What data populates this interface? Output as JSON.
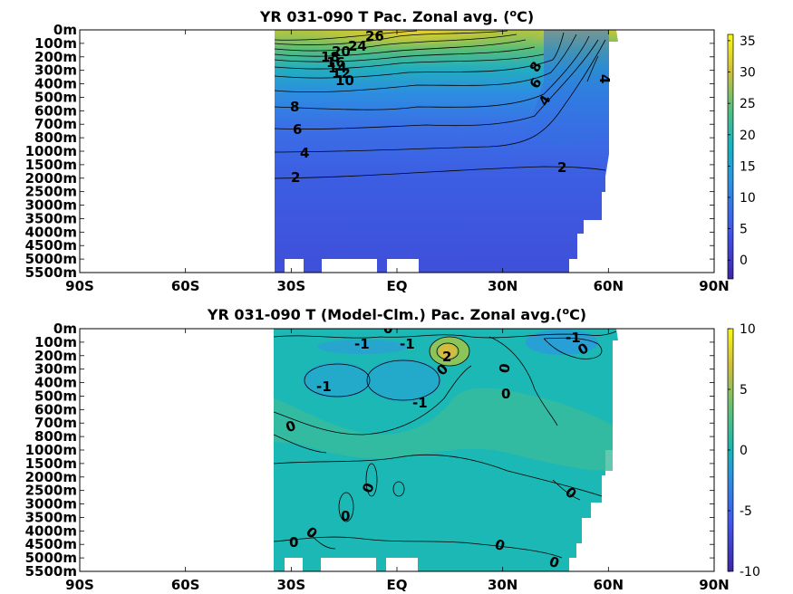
{
  "chart_data": [
    {
      "type": "heatmap",
      "title": "YR 031-090 T Pac. Zonal avg. (",
      "title_sup": "o",
      "title_end": "C)",
      "x_ticks": [
        "90S",
        "60S",
        "30S",
        "EQ",
        "30N",
        "60N",
        "90N"
      ],
      "xlim": [
        -90,
        90
      ],
      "y_ticks": [
        "0m",
        "100m",
        "200m",
        "300m",
        "400m",
        "500m",
        "600m",
        "700m",
        "800m",
        "1000m",
        "1500m",
        "2000m",
        "2500m",
        "3000m",
        "3500m",
        "4000m",
        "4500m",
        "5000m",
        "5500m"
      ],
      "data_extent_lat": [
        -34,
        62
      ],
      "colorbar": {
        "ticks": [
          "35",
          "30",
          "25",
          "20",
          "15",
          "10",
          "5",
          "0"
        ],
        "range": [
          -3,
          36
        ]
      },
      "contour_labels": [
        "26",
        "24",
        "20",
        "18",
        "16",
        "14",
        "12",
        "10",
        "8",
        "6",
        "4",
        "2",
        "8",
        "6",
        "4",
        "2",
        "4"
      ],
      "colors": {
        "warm": "#e2c73a",
        "mid": "#2fb4b0",
        "cold": "#3a52d8"
      }
    },
    {
      "type": "heatmap",
      "title": "YR 031-090 T (Model-Clm.) Pac. Zonal avg.(",
      "title_sup": "o",
      "title_end": "C)",
      "x_ticks": [
        "90S",
        "60S",
        "30S",
        "EQ",
        "30N",
        "60N",
        "90N"
      ],
      "xlim": [
        -90,
        90
      ],
      "y_ticks": [
        "0m",
        "100m",
        "200m",
        "300m",
        "400m",
        "500m",
        "600m",
        "700m",
        "800m",
        "1000m",
        "1500m",
        "2000m",
        "2500m",
        "3000m",
        "3500m",
        "4000m",
        "4500m",
        "5000m",
        "5500m"
      ],
      "data_extent_lat": [
        -34,
        62
      ],
      "colorbar": {
        "ticks": [
          "10",
          "5",
          "0",
          "-5",
          "-10"
        ],
        "range": [
          -10,
          10
        ]
      },
      "contour_labels": [
        "0",
        "-1",
        "-1",
        "2",
        "0",
        "-1",
        "0",
        "-1",
        "-1",
        "0",
        "0",
        "0",
        "0",
        "0",
        "0",
        "0",
        "0",
        "0",
        "0"
      ],
      "colors": {
        "base": "#1cb8b5",
        "neg": "#27a2cf",
        "pos": "#4ec08c"
      }
    }
  ]
}
